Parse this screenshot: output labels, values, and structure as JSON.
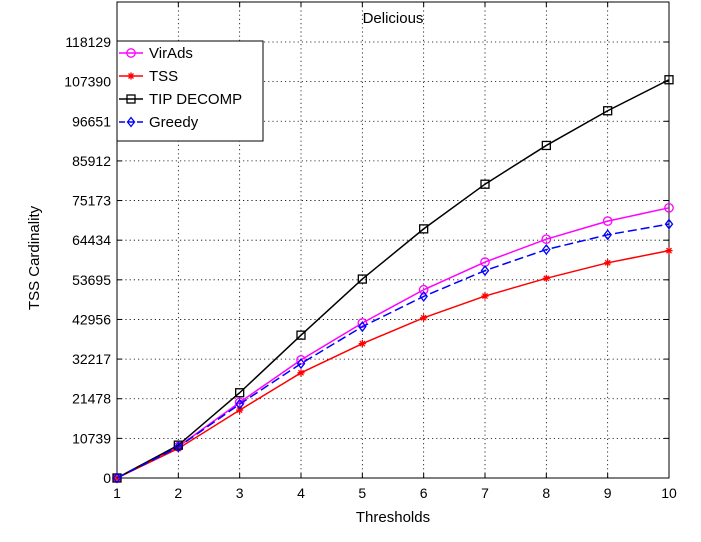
{
  "chart_data": {
    "type": "line",
    "title": "Delicious",
    "xlabel": "Thresholds",
    "ylabel": "TSS Cardinality",
    "x": [
      1,
      2,
      3,
      4,
      5,
      6,
      7,
      8,
      9,
      10
    ],
    "xlim": [
      1,
      10
    ],
    "ylim": [
      0,
      118129
    ],
    "xticks": [
      "1",
      "2",
      "3",
      "4",
      "5",
      "6",
      "7",
      "8",
      "9",
      "10"
    ],
    "yticks": [
      "0",
      "10739",
      "21478",
      "32217",
      "42956",
      "53695",
      "64434",
      "75173",
      "85912",
      "96651",
      "107390",
      "118129"
    ],
    "grid": true,
    "legend_position": "top-left",
    "series": [
      {
        "name": "VirAds",
        "color": "#ff00ff",
        "line": "solid",
        "marker": "circle",
        "values": [
          0,
          8500,
          20500,
          32000,
          42000,
          51000,
          58500,
          64700,
          69600,
          73200
        ]
      },
      {
        "name": "TSS",
        "color": "#ff0000",
        "line": "solid",
        "marker": "star",
        "values": [
          0,
          8000,
          18400,
          28500,
          36400,
          43400,
          49300,
          54100,
          58300,
          61600
        ]
      },
      {
        "name": "TIP DECOMP",
        "color": "#000000",
        "line": "solid",
        "marker": "square",
        "values": [
          0,
          8900,
          23100,
          38700,
          53900,
          67500,
          79600,
          90100,
          99500,
          107900
        ]
      },
      {
        "name": "Greedy",
        "color": "#0000ff",
        "line": "dashed",
        "marker": "diamond",
        "values": [
          0,
          8400,
          20000,
          31000,
          41000,
          49200,
          56200,
          61900,
          65900,
          68800
        ]
      }
    ]
  }
}
